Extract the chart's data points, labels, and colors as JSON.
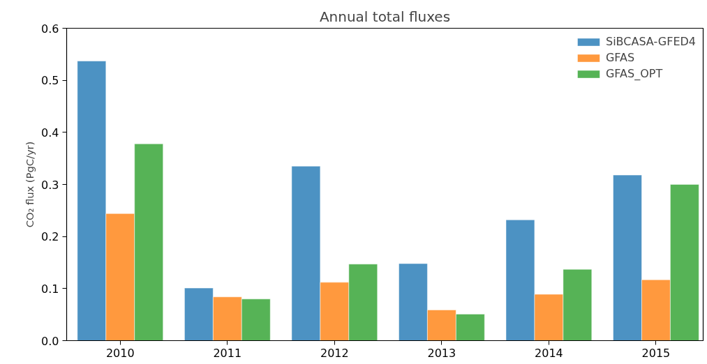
{
  "chart_data": {
    "type": "bar",
    "title": "Annual total fluxes",
    "ylabel": "CO₂ flux (PgC/yr)",
    "categories": [
      "2010",
      "2011",
      "2012",
      "2013",
      "2014",
      "2015"
    ],
    "series": [
      {
        "name": "SiBCASA-GFED4",
        "color": "#4c92c3",
        "values": [
          0.537,
          0.101,
          0.335,
          0.148,
          0.232,
          0.318
        ]
      },
      {
        "name": "GFAS",
        "color": "#ff993e",
        "values": [
          0.244,
          0.084,
          0.112,
          0.059,
          0.089,
          0.117
        ]
      },
      {
        "name": "GFAS_OPT",
        "color": "#56b356",
        "values": [
          0.378,
          0.08,
          0.147,
          0.051,
          0.137,
          0.3
        ]
      }
    ],
    "ylim": [
      0,
      0.6
    ],
    "yticks": [
      {
        "value": 0,
        "label": "0.0"
      },
      0.1,
      0.2,
      0.3,
      0.4,
      0.5,
      0.6
    ],
    "grid": false,
    "legend": "top right"
  }
}
